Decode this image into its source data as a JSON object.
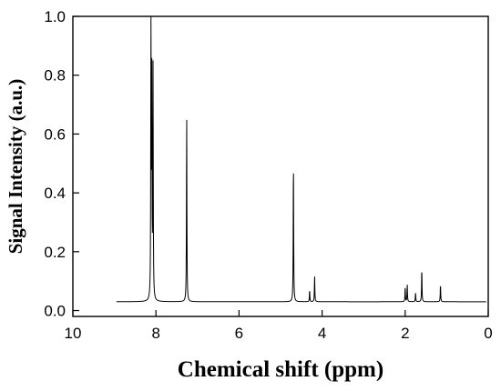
{
  "chart_data": {
    "type": "line",
    "title": "",
    "xlabel": "Chemical shift (ppm)",
    "ylabel": "Signal Intensity (a.u.)",
    "x_reversed": true,
    "xlim": [
      10,
      0
    ],
    "ylim": [
      -0.02,
      1.0
    ],
    "x_ticks": [
      10,
      8,
      6,
      4,
      2,
      0
    ],
    "y_ticks": [
      0.0,
      0.2,
      0.4,
      0.6,
      0.8,
      1.0
    ],
    "x_tick_labels": [
      "10",
      "8",
      "6",
      "4",
      "2",
      "0"
    ],
    "y_tick_labels": [
      "0.0",
      "0.2",
      "0.4",
      "0.6",
      "0.8",
      "1.0"
    ],
    "grid": false,
    "legend": "none",
    "line_color": "#000000",
    "baseline": 0.03,
    "x_start": 8.95,
    "x_end": 0.05,
    "peaks": [
      {
        "x": 8.12,
        "y": 0.935
      },
      {
        "x": 8.1,
        "y": 0.76
      },
      {
        "x": 8.07,
        "y": 0.81
      },
      {
        "x": 7.26,
        "y": 0.665
      },
      {
        "x": 4.69,
        "y": 0.52
      },
      {
        "x": 4.3,
        "y": 0.07
      },
      {
        "x": 4.18,
        "y": 0.12
      },
      {
        "x": 2.0,
        "y": 0.08
      },
      {
        "x": 1.95,
        "y": 0.09
      },
      {
        "x": 1.75,
        "y": 0.06
      },
      {
        "x": 1.6,
        "y": 0.145
      },
      {
        "x": 1.15,
        "y": 0.09
      }
    ]
  }
}
